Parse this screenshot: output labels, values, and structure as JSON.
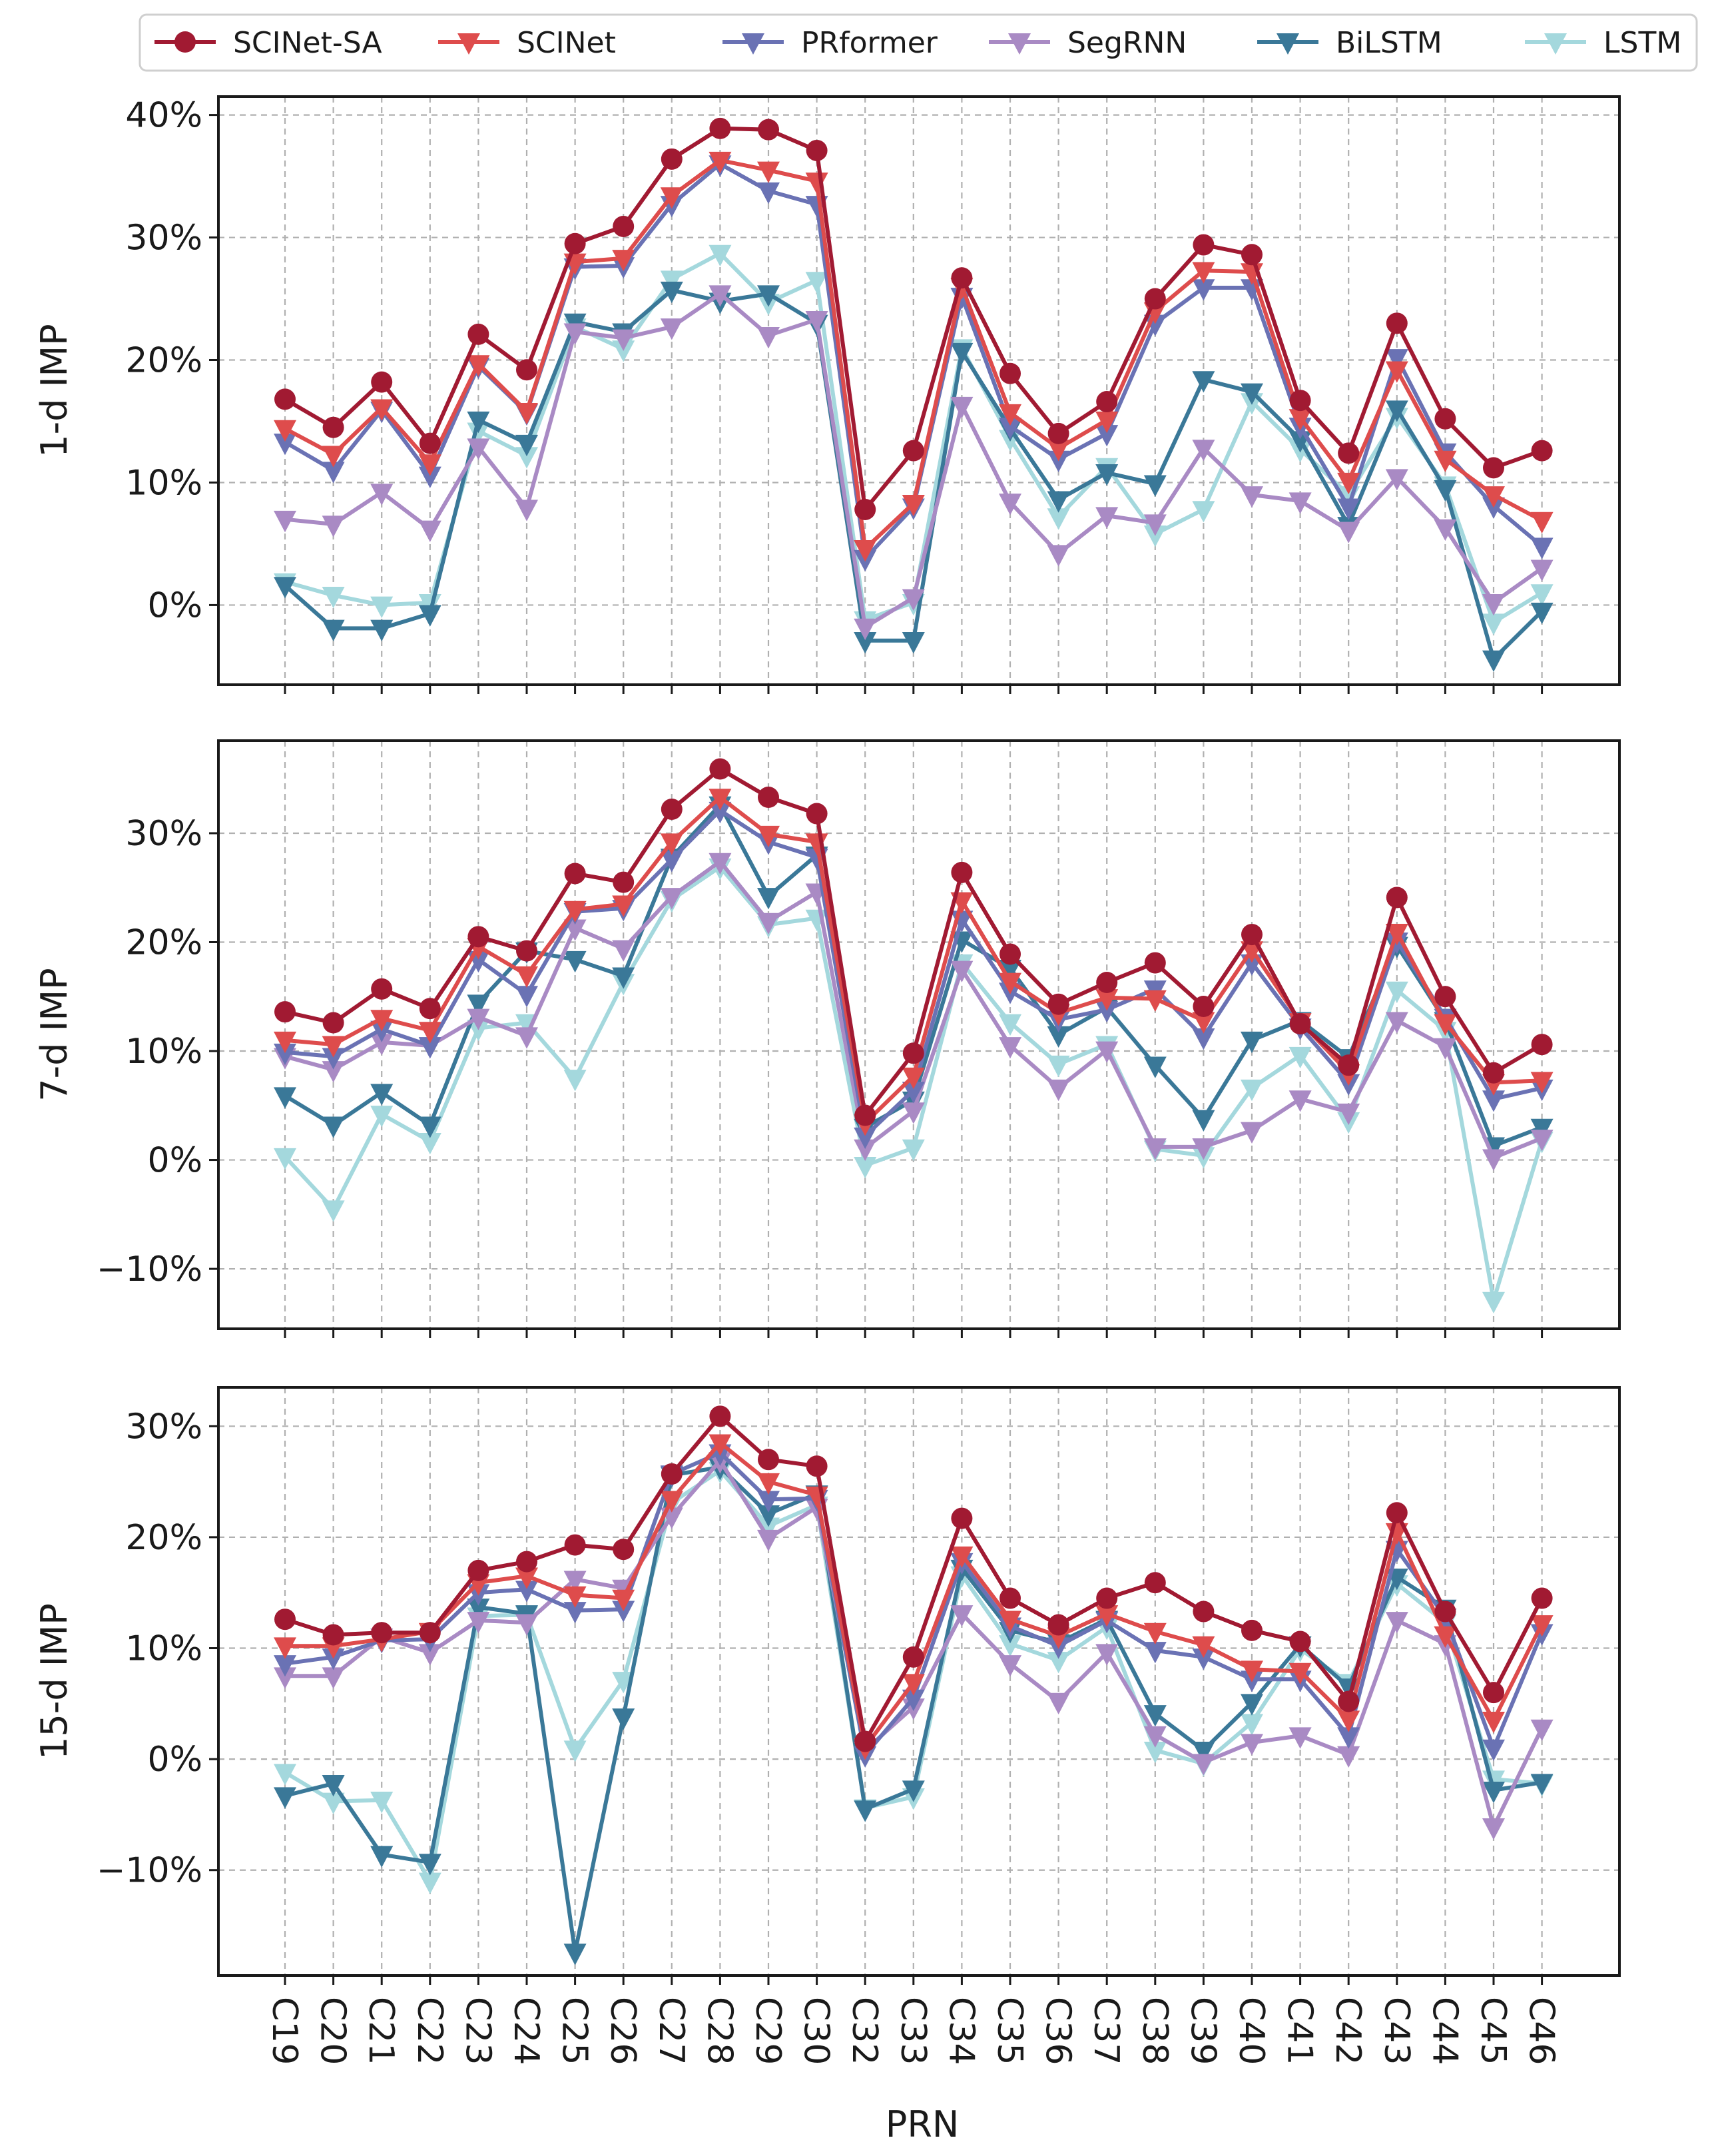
{
  "chart_data": [
    {
      "type": "line",
      "ylabel": "1-d IMP",
      "ylim": [
        -6.5,
        41.5
      ],
      "yticks": [
        0,
        10,
        20,
        30,
        40
      ],
      "ytick_labels": [
        "0%",
        "10%",
        "20%",
        "30%",
        "40%"
      ],
      "grid": true,
      "series": [
        {
          "name": "SCINet-SA",
          "values": [
            16.8,
            14.5,
            18.2,
            13.2,
            22.1,
            19.2,
            29.5,
            30.9,
            36.4,
            38.9,
            38.8,
            37.1,
            7.8,
            12.6,
            26.7,
            18.9,
            14.0,
            16.6,
            25.0,
            29.4,
            28.6,
            16.7,
            12.4,
            23.0,
            15.2,
            11.2,
            12.6
          ]
        },
        {
          "name": "SCINet",
          "values": [
            14.4,
            12.3,
            16.1,
            11.6,
            19.7,
            15.8,
            28.0,
            28.3,
            33.4,
            36.3,
            35.5,
            34.6,
            4.6,
            8.3,
            26.0,
            15.7,
            12.8,
            15.1,
            24.0,
            27.3,
            27.2,
            15.3,
            10.1,
            19.2,
            11.9,
            9.0,
            6.9
          ]
        },
        {
          "name": "PRformer",
          "values": [
            13.3,
            11.0,
            15.9,
            10.6,
            19.5,
            15.7,
            27.6,
            27.7,
            32.7,
            36.0,
            33.8,
            32.7,
            3.8,
            8.0,
            25.2,
            14.6,
            11.9,
            14.0,
            23.0,
            25.9,
            25.9,
            14.6,
            8.0,
            20.2,
            12.5,
            8.1,
            4.8
          ]
        },
        {
          "name": "SegRNN",
          "values": [
            7.0,
            6.6,
            9.2,
            6.2,
            12.9,
            7.9,
            22.3,
            21.8,
            22.7,
            25.4,
            22.0,
            23.3,
            -1.8,
            0.6,
            16.3,
            8.4,
            4.2,
            7.3,
            6.7,
            12.8,
            9.0,
            8.5,
            6.1,
            10.4,
            6.3,
            0.2,
            3.0
          ]
        },
        {
          "name": "BiLSTM",
          "values": [
            1.6,
            -1.9,
            -1.9,
            -0.7,
            15.1,
            13.2,
            23.1,
            22.3,
            25.7,
            24.8,
            25.4,
            23.0,
            -2.9,
            -2.9,
            20.7,
            14.4,
            8.6,
            10.8,
            9.9,
            18.4,
            17.4,
            13.5,
            6.5,
            16.0,
            9.5,
            -4.4,
            -0.5
          ]
        },
        {
          "name": "LSTM",
          "values": [
            1.9,
            0.8,
            0.0,
            0.2,
            14.2,
            12.2,
            22.7,
            20.9,
            26.6,
            28.7,
            24.7,
            26.5,
            -1.2,
            0.2,
            21.0,
            13.6,
            7.2,
            11.3,
            5.8,
            7.8,
            16.6,
            12.7,
            9.0,
            15.4,
            9.8,
            -1.4,
            1.0
          ]
        }
      ]
    },
    {
      "type": "line",
      "ylabel": "7-d IMP",
      "ylim": [
        -15.5,
        38.5
      ],
      "yticks": [
        -10,
        0,
        10,
        20,
        30
      ],
      "ytick_labels": [
        "−10%",
        "0%",
        "10%",
        "20%",
        "30%"
      ],
      "grid": true,
      "series": [
        {
          "name": "SCINet-SA",
          "values": [
            13.6,
            12.6,
            15.7,
            13.9,
            20.5,
            19.2,
            26.3,
            25.5,
            32.2,
            35.9,
            33.3,
            31.8,
            4.1,
            9.8,
            26.4,
            18.9,
            14.3,
            16.3,
            18.1,
            14.1,
            20.7,
            12.5,
            8.7,
            24.1,
            15.0,
            8.0,
            10.6
          ]
        },
        {
          "name": "SCINet",
          "values": [
            11.0,
            10.6,
            13.0,
            11.9,
            19.6,
            17.0,
            23.0,
            23.5,
            29.2,
            33.3,
            29.9,
            29.2,
            3.4,
            7.7,
            23.8,
            16.4,
            13.5,
            14.9,
            14.8,
            12.8,
            19.3,
            12.7,
            8.0,
            20.9,
            12.6,
            7.1,
            7.3
          ]
        },
        {
          "name": "PRformer",
          "values": [
            9.9,
            9.5,
            12.0,
            10.5,
            18.4,
            15.2,
            22.8,
            23.1,
            27.6,
            32.1,
            29.2,
            27.8,
            2.2,
            6.4,
            22.1,
            15.5,
            12.9,
            13.8,
            15.7,
            11.3,
            18.1,
            12.2,
            7.1,
            20.1,
            13.1,
            5.6,
            6.6
          ]
        },
        {
          "name": "SegRNN",
          "values": [
            9.5,
            8.3,
            10.8,
            10.5,
            13.1,
            11.4,
            21.3,
            19.4,
            24.2,
            27.4,
            21.9,
            24.6,
            1.1,
            4.5,
            17.5,
            10.5,
            6.6,
            10.1,
            1.2,
            1.2,
            2.7,
            5.6,
            4.4,
            12.8,
            10.4,
            0.2,
            2.0
          ]
        },
        {
          "name": "BiLSTM",
          "values": [
            5.9,
            3.2,
            6.2,
            3.2,
            14.4,
            19.2,
            18.4,
            16.9,
            27.8,
            32.6,
            24.2,
            28.0,
            3.0,
            5.5,
            20.2,
            17.6,
            11.5,
            14.0,
            8.7,
            3.8,
            11.0,
            12.8,
            9.4,
            19.7,
            12.8,
            1.3,
            3.0
          ]
        },
        {
          "name": "LSTM",
          "values": [
            0.3,
            -4.5,
            4.2,
            1.7,
            12.1,
            12.6,
            7.5,
            16.3,
            23.9,
            26.9,
            21.6,
            22.2,
            -0.5,
            1.1,
            18.1,
            12.6,
            8.8,
            10.6,
            1.0,
            0.4,
            6.6,
            9.6,
            3.6,
            15.6,
            11.9,
            -12.9,
            1.8
          ]
        }
      ]
    },
    {
      "type": "line",
      "ylabel": "15-d IMP",
      "ylim": [
        -19.5,
        33.5
      ],
      "yticks": [
        -10,
        0,
        10,
        20,
        30
      ],
      "ytick_labels": [
        "−10%",
        "0%",
        "10%",
        "20%",
        "30%"
      ],
      "grid": true,
      "series": [
        {
          "name": "SCINet-SA",
          "values": [
            12.6,
            11.2,
            11.4,
            11.4,
            17.0,
            17.8,
            19.3,
            18.9,
            25.7,
            30.9,
            27.0,
            26.4,
            1.6,
            9.2,
            21.7,
            14.5,
            12.1,
            14.5,
            15.9,
            13.3,
            11.6,
            10.6,
            5.2,
            22.2,
            13.3,
            6.0,
            14.5
          ]
        },
        {
          "name": "SCINet",
          "values": [
            10.2,
            10.2,
            10.8,
            11.5,
            15.9,
            16.5,
            14.8,
            14.5,
            23.4,
            28.5,
            25.0,
            23.8,
            1.1,
            6.9,
            18.4,
            12.6,
            11.1,
            13.1,
            11.5,
            10.3,
            8.1,
            7.9,
            3.6,
            20.5,
            11.2,
            3.5,
            12.2
          ]
        },
        {
          "name": "PRformer",
          "values": [
            8.6,
            9.2,
            10.7,
            10.8,
            15.0,
            15.3,
            13.4,
            13.5,
            25.7,
            27.6,
            23.4,
            23.5,
            0.4,
            5.5,
            17.8,
            12.0,
            10.2,
            12.5,
            9.8,
            9.2,
            7.2,
            7.2,
            2.1,
            18.9,
            12.8,
            1.0,
            11.4
          ]
        },
        {
          "name": "SegRNN",
          "values": [
            7.5,
            7.5,
            11.0,
            9.6,
            12.5,
            12.3,
            16.2,
            15.4,
            21.9,
            26.9,
            19.9,
            22.7,
            0.8,
            4.7,
            13.1,
            8.6,
            5.2,
            9.6,
            2.2,
            -0.3,
            1.5,
            2.1,
            0.4,
            12.5,
            10.4,
            -6.1,
            2.8
          ]
        },
        {
          "name": "BiLSTM",
          "values": [
            -3.3,
            -2.2,
            -8.6,
            -9.3,
            13.7,
            13.1,
            -17.4,
            3.8,
            25.6,
            26.3,
            22.1,
            23.9,
            -4.5,
            -2.7,
            17.2,
            11.6,
            10.5,
            12.6,
            4.1,
            0.8,
            5.1,
            10.3,
            6.5,
            16.4,
            13.6,
            -2.8,
            -2.1
          ]
        },
        {
          "name": "LSTM",
          "values": [
            -1.2,
            -3.8,
            -3.7,
            -11.0,
            12.9,
            13.0,
            0.9,
            7.1,
            23.1,
            26.0,
            21.0,
            22.9,
            -4.4,
            -3.4,
            16.6,
            10.4,
            8.9,
            11.9,
            0.8,
            -0.4,
            3.3,
            9.9,
            6.9,
            15.8,
            12.3,
            -1.8,
            -2.2
          ]
        }
      ]
    }
  ],
  "categories": [
    "C19",
    "C20",
    "C21",
    "C22",
    "C23",
    "C24",
    "C25",
    "C26",
    "C27",
    "C28",
    "C29",
    "C30",
    "C32",
    "C33",
    "C34",
    "C35",
    "C36",
    "C37",
    "C38",
    "C39",
    "C40",
    "C41",
    "C42",
    "C43",
    "C44",
    "C45",
    "C46"
  ],
  "xlabel": "PRN",
  "legend": {
    "placement": "top",
    "entries": [
      {
        "name": "SCINet-SA",
        "color": "#a11a32",
        "marker": "circle"
      },
      {
        "name": "SCINet",
        "color": "#de4c4c",
        "marker": "triangle-down"
      },
      {
        "name": "PRformer",
        "color": "#6a72b4",
        "marker": "triangle-down"
      },
      {
        "name": "SegRNN",
        "color": "#a98ac4",
        "marker": "triangle-down"
      },
      {
        "name": "BiLSTM",
        "color": "#3a7898",
        "marker": "triangle-down"
      },
      {
        "name": "LSTM",
        "color": "#a4d8dd",
        "marker": "triangle-down"
      }
    ]
  }
}
